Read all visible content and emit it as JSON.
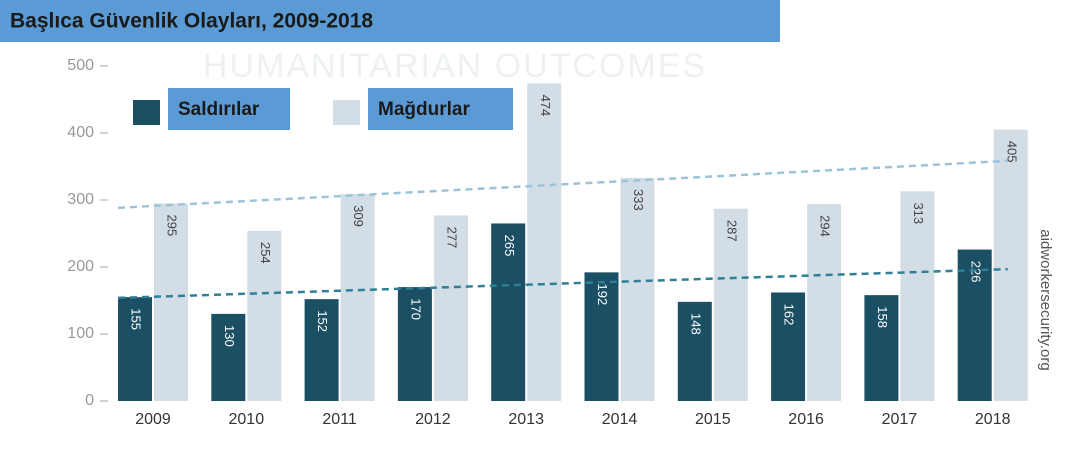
{
  "chart_data": {
    "type": "bar",
    "title": "Başlıca Güvenlik Olayları, 2009-2018",
    "watermark": "HUMANITARIAN OUTCOMES",
    "source": "aidworkersecurity.org",
    "categories": [
      "2009",
      "2010",
      "2011",
      "2012",
      "2013",
      "2014",
      "2015",
      "2016",
      "2017",
      "2018"
    ],
    "series": [
      {
        "name": "Saldırılar",
        "color": "#1b4f63",
        "values": [
          155,
          130,
          152,
          170,
          265,
          192,
          148,
          162,
          158,
          226
        ]
      },
      {
        "name": "Mağdurlar",
        "color": "#d3dde5",
        "values": [
          295,
          254,
          309,
          277,
          474,
          333,
          287,
          294,
          313,
          405
        ]
      }
    ],
    "ylim": [
      0,
      500
    ],
    "yticks": [
      0,
      100,
      200,
      300,
      400,
      500
    ],
    "legend": "top-left",
    "trendlines": true
  }
}
